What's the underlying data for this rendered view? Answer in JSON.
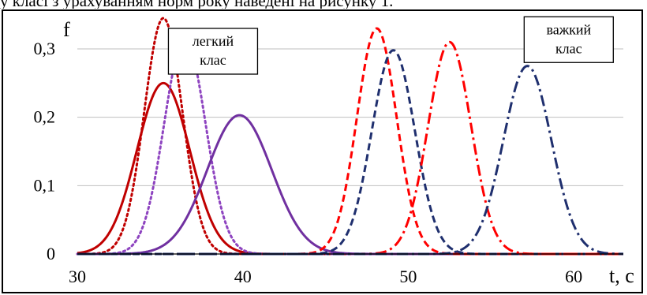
{
  "caption": "у класі з урахуванням норм року наведені на рисунку 1.",
  "chart_data": {
    "type": "line",
    "title": "",
    "xlabel": "t, с",
    "ylabel": "f",
    "xlim": [
      30,
      63
    ],
    "ylim": [
      0,
      0.36
    ],
    "xticks": [
      30,
      40,
      50,
      60
    ],
    "xtick_labels": [
      "30",
      "40",
      "50",
      "60"
    ],
    "yticks": [
      0,
      0.1,
      0.2,
      0.3
    ],
    "ytick_labels": [
      "0",
      "0,1",
      "0,2",
      "0,3"
    ],
    "grid": "horizontal",
    "annotations": [
      {
        "lines": [
          "легкий",
          "клас"
        ],
        "anchor_x": 38.2,
        "anchor_y": 0.33
      },
      {
        "lines": [
          "важкий",
          "клас"
        ],
        "anchor_x": 59.7,
        "anchor_y": 0.347
      }
    ],
    "series": [
      {
        "color": "#C00000",
        "dash": "solid",
        "distribution": "normal",
        "mean": 35.2,
        "sd": 1.6,
        "peak": 0.25
      },
      {
        "color": "#C00000",
        "dash": "dotted",
        "distribution": "normal",
        "mean": 35.2,
        "sd": 1.15,
        "peak": 0.345
      },
      {
        "color": "#8E44C0",
        "dash": "dotted",
        "distribution": "normal",
        "mean": 36.5,
        "sd": 1.25,
        "peak": 0.315
      },
      {
        "color": "#7030A0",
        "dash": "solid",
        "distribution": "normal",
        "mean": 39.8,
        "sd": 1.95,
        "peak": 0.203
      },
      {
        "color": "#FF0000",
        "dash": "dashed",
        "distribution": "normal",
        "mean": 48.1,
        "sd": 1.2,
        "peak": 0.33
      },
      {
        "color": "#1F2F6E",
        "dash": "dashed",
        "distribution": "normal",
        "mean": 49.1,
        "sd": 1.3,
        "peak": 0.298
      },
      {
        "color": "#FF0000",
        "dash": "dash-dot",
        "distribution": "normal",
        "mean": 52.5,
        "sd": 1.3,
        "peak": 0.31
      },
      {
        "color": "#1F2F6E",
        "dash": "dash-dot",
        "distribution": "normal",
        "mean": 57.2,
        "sd": 1.45,
        "peak": 0.275
      }
    ]
  }
}
